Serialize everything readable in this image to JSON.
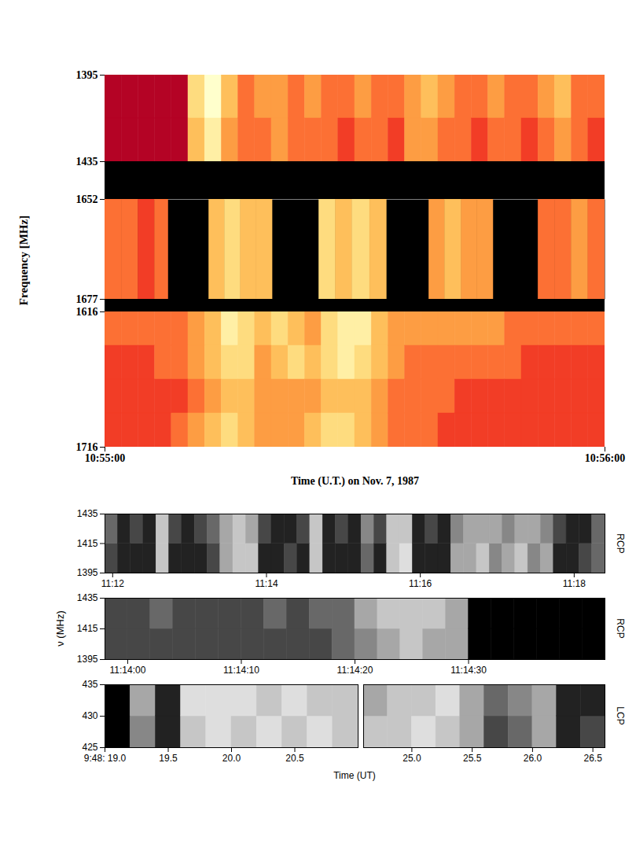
{
  "chart_data": [
    {
      "type": "heatmap",
      "x_label": "Time (U.T.) on Nov. 7, 1987",
      "y_label": "Frequency [MHz]",
      "xlim": [
        39300,
        39360
      ],
      "xticks": [
        {
          "value": 39300,
          "label": "10:55:00"
        },
        {
          "value": 39360,
          "label": "10:56:00"
        }
      ],
      "zlim": [
        0,
        9
      ],
      "bands": [
        {
          "ylim": [
            1435,
            1395
          ],
          "yticks": [
            1395,
            1435
          ],
          "x_bins": [
            39300,
            39302,
            39304,
            39306,
            39308,
            39310,
            39312,
            39314,
            39316,
            39318,
            39320,
            39322,
            39324,
            39326,
            39328,
            39330,
            39332,
            39334,
            39336,
            39338,
            39340,
            39342,
            39344,
            39346,
            39348,
            39350,
            39352,
            39354,
            39356,
            39358,
            39360
          ],
          "y_bins": [
            1395,
            1415,
            1435
          ],
          "cells": [
            [
              1,
              1,
              1,
              1,
              1,
              7,
              9,
              6,
              4,
              5,
              5,
              4,
              5,
              4,
              4,
              5,
              4,
              4,
              5,
              6,
              5,
              4,
              4,
              5,
              4,
              4,
              5,
              6,
              4,
              4
            ],
            [
              1,
              1,
              1,
              1,
              1,
              6,
              8,
              5,
              4,
              4,
              5,
              4,
              4,
              4,
              3,
              4,
              4,
              3,
              5,
              5,
              4,
              4,
              3,
              4,
              4,
              3,
              4,
              5,
              4,
              3
            ]
          ]
        },
        {
          "ylim": [
            1677,
            1652
          ],
          "yticks": [
            1652,
            1677
          ],
          "x_bins": [
            39300,
            39302,
            39304,
            39306,
            39307.6,
            39312.5,
            39314.4,
            39316.3,
            39318.2,
            39320.1,
            39325.7,
            39327.7,
            39329.7,
            39331.8,
            39333.8,
            39338.9,
            39340.8,
            39342.8,
            39344.7,
            39346.6,
            39352,
            39354,
            39356,
            39358,
            39360
          ],
          "y_bins": [
            1652,
            1677
          ],
          "cells": [
            [
              4,
              4,
              3,
              4,
              null,
              6,
              7,
              6,
              6,
              null,
              7,
              6,
              7,
              6,
              null,
              5,
              6,
              5,
              5,
              null,
              4,
              4,
              5,
              4
            ]
          ]
        },
        {
          "ylim": [
            1716,
            1616
          ],
          "yticks": [
            1616,
            1716
          ],
          "x_bins": [
            39300,
            39302,
            39304,
            39306,
            39308,
            39310,
            39312,
            39314,
            39316,
            39318,
            39320,
            39322,
            39324,
            39326,
            39328,
            39330,
            39332,
            39334,
            39336,
            39338,
            39340,
            39342,
            39344,
            39346,
            39348,
            39350,
            39352,
            39354,
            39356,
            39358,
            39360
          ],
          "y_bins": [
            1616,
            1641,
            1666,
            1691,
            1716
          ],
          "cells": [
            [
              4,
              4,
              4,
              4,
              4,
              5,
              6,
              8,
              7,
              6,
              7,
              6,
              5,
              7,
              8,
              8,
              6,
              5,
              5,
              5,
              5,
              5,
              5,
              5,
              4,
              4,
              4,
              4,
              4,
              4
            ],
            [
              3,
              3,
              3,
              4,
              4,
              5,
              6,
              7,
              7,
              5,
              6,
              7,
              6,
              7,
              8,
              7,
              6,
              5,
              4,
              4,
              4,
              4,
              4,
              4,
              4,
              3,
              3,
              3,
              3,
              3
            ],
            [
              3,
              3,
              3,
              3,
              3,
              4,
              5,
              6,
              6,
              5,
              5,
              5,
              5,
              6,
              6,
              6,
              5,
              4,
              4,
              4,
              4,
              3,
              3,
              3,
              3,
              3,
              3,
              3,
              3,
              3
            ],
            [
              3,
              3,
              3,
              3,
              4,
              5,
              6,
              7,
              6,
              5,
              5,
              5,
              6,
              7,
              7,
              6,
              5,
              4,
              4,
              4,
              3,
              3,
              3,
              3,
              3,
              3,
              3,
              3,
              3,
              3
            ]
          ]
        }
      ]
    },
    {
      "type": "heatmap",
      "annotation": "RCP",
      "xlim": [
        40314,
        40704
      ],
      "xticks": [
        {
          "value": 40320,
          "label": "11:12"
        },
        {
          "value": 40440,
          "label": "11:14"
        },
        {
          "value": 40560,
          "label": "11:16"
        },
        {
          "value": 40680,
          "label": "11:18"
        }
      ],
      "ylim": [
        1395,
        1435
      ],
      "yticks": [
        1395,
        1415,
        1435
      ],
      "zlim": [
        0,
        9
      ],
      "x_bins": [
        40314,
        40324,
        40334,
        40344,
        40354,
        40364,
        40374,
        40384,
        40394,
        40404,
        40414,
        40424,
        40434,
        40444,
        40454,
        40464,
        40474,
        40484,
        40494,
        40504,
        40514,
        40524,
        40534,
        40544,
        40554,
        40564,
        40574,
        40584,
        40594,
        40604,
        40614,
        40624,
        40634,
        40644,
        40654,
        40664,
        40674,
        40684,
        40694,
        40704
      ],
      "y_bins": [
        1395,
        1415,
        1435
      ],
      "cells": [
        [
          7,
          8,
          8,
          8,
          3,
          8,
          8,
          8,
          7,
          4,
          3,
          3,
          8,
          8,
          7,
          8,
          3,
          8,
          8,
          8,
          6,
          8,
          3,
          2,
          8,
          8,
          8,
          4,
          4,
          3,
          5,
          4,
          3,
          5,
          4,
          8,
          8,
          7,
          6
        ],
        [
          6,
          8,
          7,
          8,
          3,
          7,
          8,
          7,
          6,
          4,
          3,
          4,
          7,
          8,
          8,
          7,
          3,
          8,
          7,
          8,
          5,
          7,
          3,
          3,
          8,
          7,
          8,
          5,
          4,
          4,
          4,
          5,
          4,
          4,
          5,
          7,
          8,
          8,
          6
        ]
      ]
    },
    {
      "type": "heatmap",
      "annotation": "RCP",
      "y_label": "ν (MHz)",
      "xlim": [
        40438,
        40482
      ],
      "xticks": [
        {
          "value": 40440,
          "label": "11:14:00"
        },
        {
          "value": 40450,
          "label": "11:14:10"
        },
        {
          "value": 40460,
          "label": "11:14:20"
        },
        {
          "value": 40470,
          "label": "11:14:30"
        }
      ],
      "ylim": [
        1395,
        1435
      ],
      "yticks": [
        1395,
        1415,
        1435
      ],
      "zlim": [
        0,
        9
      ],
      "x_bins": [
        40438,
        40440,
        40442,
        40444,
        40446,
        40448,
        40450,
        40452,
        40454,
        40456,
        40458,
        40460,
        40462,
        40464,
        40466,
        40468,
        40470,
        40472,
        40474,
        40476,
        40478,
        40480,
        40482
      ],
      "y_bins": [
        1395,
        1415,
        1435
      ],
      "cells": [
        [
          7,
          7,
          7,
          7,
          7,
          7,
          7,
          7,
          7,
          7,
          6,
          5,
          4,
          3,
          4,
          4,
          9,
          9,
          9,
          9,
          9,
          9
        ],
        [
          7,
          7,
          6,
          7,
          7,
          7,
          7,
          6,
          7,
          6,
          6,
          4,
          3,
          3,
          3,
          4,
          9,
          9,
          9,
          9,
          9,
          9
        ]
      ]
    },
    {
      "type": "heatmap",
      "annotation": "LCP",
      "x_label": "Time (UT)",
      "ylim": [
        425,
        435
      ],
      "yticks": [
        425,
        430,
        435
      ],
      "zlim": [
        0,
        9
      ],
      "y_bins": [
        425,
        430,
        435
      ],
      "segments": [
        {
          "xlim": [
            35299,
            35301
          ],
          "xticks": [
            {
              "value": 35299,
              "label": "9:48: 19.0"
            },
            {
              "value": 35299.5,
              "label": "19.5"
            },
            {
              "value": 35300,
              "label": "20.0"
            },
            {
              "value": 35300.5,
              "label": "20.5"
            }
          ],
          "x_bins": [
            35299,
            35299.2,
            35299.4,
            35299.6,
            35299.8,
            35300,
            35300.2,
            35300.4,
            35300.6,
            35300.8,
            35301
          ],
          "cells": [
            [
              9,
              5,
              8,
              3,
              2,
              3,
              2,
              3,
              2,
              3
            ],
            [
              9,
              4,
              8,
              2,
              2,
              2,
              3,
              2,
              3,
              3
            ]
          ]
        },
        {
          "xlim": [
            35304.6,
            35306.6
          ],
          "xticks": [
            {
              "value": 35305,
              "label": "25.0"
            },
            {
              "value": 35305.5,
              "label": "25.5"
            },
            {
              "value": 35306,
              "label": "26.0"
            },
            {
              "value": 35306.5,
              "label": "26.5"
            }
          ],
          "x_bins": [
            35304.6,
            35304.8,
            35305,
            35305.2,
            35305.4,
            35305.6,
            35305.8,
            35306,
            35306.2,
            35306.4,
            35306.6
          ],
          "cells": [
            [
              3,
              3,
              2,
              3,
              4,
              7,
              6,
              4,
              8,
              7
            ],
            [
              4,
              3,
              3,
              2,
              4,
              6,
              5,
              4,
              8,
              8
            ]
          ]
        }
      ]
    }
  ]
}
